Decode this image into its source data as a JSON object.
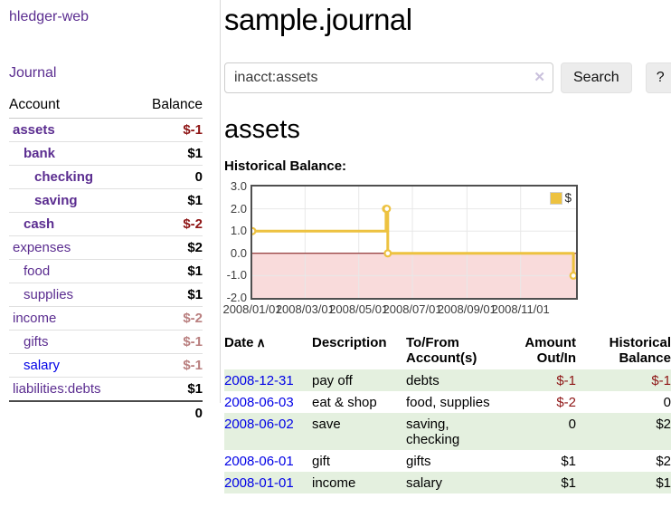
{
  "colors": {
    "purple": "#5b2d90",
    "link_blue": "#0000e6",
    "neg_strong": "#8e1515",
    "neg_soft": "#b97f7f",
    "row_green": "#e4f0df",
    "chart_line": "#edc240",
    "chart_negative_region": "#f9dbdb",
    "chart_zero_line": "#7c0a0a",
    "chart_grid": "#e8e8e8"
  },
  "sidebar": {
    "app_title": "hledger-web",
    "nav_journal": "Journal",
    "header": {
      "account": "Account",
      "balance": "Balance"
    },
    "accounts": [
      {
        "name": "assets",
        "balance": "$-1",
        "depth": 0,
        "bold": true,
        "balance_style": "neg_strong",
        "link_color": "purple"
      },
      {
        "name": "bank",
        "balance": "$1",
        "depth": 1,
        "bold": true,
        "balance_style": "pos",
        "link_color": "purple"
      },
      {
        "name": "checking",
        "balance": "0",
        "depth": 2,
        "bold": true,
        "balance_style": "pos",
        "link_color": "purple"
      },
      {
        "name": "saving",
        "balance": "$1",
        "depth": 2,
        "bold": true,
        "balance_style": "pos",
        "link_color": "purple"
      },
      {
        "name": "cash",
        "balance": "$-2",
        "depth": 1,
        "bold": true,
        "balance_style": "neg_strong",
        "link_color": "purple"
      },
      {
        "name": "expenses",
        "balance": "$2",
        "depth": 0,
        "bold": false,
        "balance_style": "pos",
        "link_color": "purple"
      },
      {
        "name": "food",
        "balance": "$1",
        "depth": 1,
        "bold": false,
        "balance_style": "pos",
        "link_color": "purple"
      },
      {
        "name": "supplies",
        "balance": "$1",
        "depth": 1,
        "bold": false,
        "balance_style": "pos",
        "link_color": "purple"
      },
      {
        "name": "income",
        "balance": "$-2",
        "depth": 0,
        "bold": false,
        "balance_style": "neg_soft",
        "link_color": "purple"
      },
      {
        "name": "gifts",
        "balance": "$-1",
        "depth": 1,
        "bold": false,
        "balance_style": "neg_soft",
        "link_color": "purple"
      },
      {
        "name": "salary",
        "balance": "$-1",
        "depth": 1,
        "bold": false,
        "balance_style": "neg_soft",
        "link_color": "blue"
      },
      {
        "name": "liabilities:debts",
        "balance": "$1",
        "depth": 0,
        "bold": false,
        "balance_style": "pos",
        "link_color": "purple"
      }
    ],
    "total": "0"
  },
  "main": {
    "title": "sample.journal",
    "search": {
      "value": "inacct:assets",
      "clear_icon": "✕",
      "search_label": "Search",
      "help_label": "?"
    },
    "account_heading": "assets",
    "section_heading": "Historical Balance:"
  },
  "chart_data": {
    "type": "line",
    "subtype": "step",
    "title": "Historical Balance:",
    "grid": true,
    "legend_position": "top-right",
    "legend": [
      {
        "label": "$",
        "color": "#edc240"
      }
    ],
    "x_domain": [
      "2008-01-01",
      "2009-01-03"
    ],
    "ylim": [
      -2,
      3
    ],
    "y_ticks": [
      {
        "label": "3.0",
        "value": 3
      },
      {
        "label": "2.0",
        "value": 2
      },
      {
        "label": "1.0",
        "value": 1
      },
      {
        "label": "0.0",
        "value": 0
      },
      {
        "label": "-1.0",
        "value": -1
      },
      {
        "label": "-2.0",
        "value": -2
      }
    ],
    "x_ticks": [
      {
        "label": "2008/01/01",
        "date": "2008-01-01"
      },
      {
        "label": "2008/03/01",
        "date": "2008-03-01"
      },
      {
        "label": "2008/05/01",
        "date": "2008-05-01"
      },
      {
        "label": "2008/07/01",
        "date": "2008-07-01"
      },
      {
        "label": "2008/09/01",
        "date": "2008-09-01"
      },
      {
        "label": "2008/11/01",
        "date": "2008-11-01"
      }
    ],
    "series": [
      {
        "name": "$",
        "points": [
          {
            "date": "2008-01-01",
            "value": 1
          },
          {
            "date": "2008-06-01",
            "value": 2
          },
          {
            "date": "2008-06-02",
            "value": 2
          },
          {
            "date": "2008-06-03",
            "value": 0
          },
          {
            "date": "2008-12-31",
            "value": -1
          }
        ]
      }
    ]
  },
  "register_table": {
    "sort_icon": "∧",
    "columns": [
      {
        "label": "Date"
      },
      {
        "label": "Description"
      },
      {
        "label": "To/From Account(s)"
      },
      {
        "label": "Amount Out/In"
      },
      {
        "label": "Historical Balance"
      }
    ],
    "rows": [
      {
        "date": "2008-12-31",
        "description": "pay off",
        "accounts": "debts",
        "amount": "$-1",
        "amount_neg": true,
        "balance": "$-1",
        "balance_neg": true,
        "shaded": true
      },
      {
        "date": "2008-06-03",
        "description": "eat & shop",
        "accounts": "food, supplies",
        "amount": "$-2",
        "amount_neg": true,
        "balance": "0",
        "balance_neg": false,
        "shaded": false
      },
      {
        "date": "2008-06-02",
        "description": "save",
        "accounts": "saving, checking",
        "amount": "0",
        "amount_neg": false,
        "balance": "$2",
        "balance_neg": false,
        "shaded": true
      },
      {
        "date": "2008-06-01",
        "description": "gift",
        "accounts": "gifts",
        "amount": "$1",
        "amount_neg": false,
        "balance": "$2",
        "balance_neg": false,
        "shaded": false
      },
      {
        "date": "2008-01-01",
        "description": "income",
        "accounts": "salary",
        "amount": "$1",
        "amount_neg": false,
        "balance": "$1",
        "balance_neg": false,
        "shaded": true
      }
    ]
  }
}
